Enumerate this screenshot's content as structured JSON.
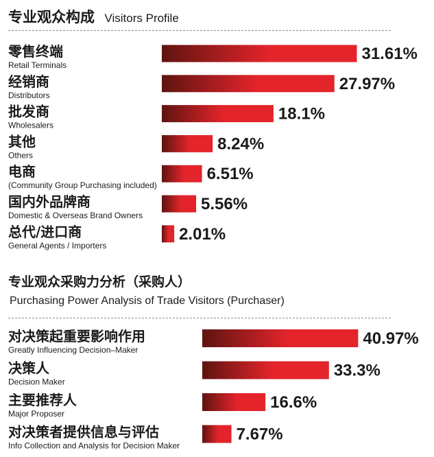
{
  "title": {
    "zh": "专业观众构成",
    "en": "Visitors Profile"
  },
  "section2": {
    "zh": "专业观众采购力分析（采购人）",
    "en": "Purchasing Power Analysis of Trade Visitors (Purchaser)"
  },
  "colors": {
    "bar_dark": "#5e1410",
    "bar_bright": "#e3242b",
    "divider": "#8a8a8a"
  },
  "chart_data": [
    {
      "type": "bar",
      "orientation": "horizontal",
      "title": "专业观众构成 Visitors Profile",
      "categories": [
        {
          "zh": "零售终端",
          "en": "Retail Terminals"
        },
        {
          "zh": "经销商",
          "en": "Distributors"
        },
        {
          "zh": "批发商",
          "en": "Wholesalers"
        },
        {
          "zh": "其他",
          "en": "Others"
        },
        {
          "zh": "电商",
          "en": "(Community Group Purchasing included)"
        },
        {
          "zh": "国内外品牌商",
          "en": "Domestic & Overseas Brand Owners"
        },
        {
          "zh": "总代/进口商",
          "en": "General Agents / Importers"
        }
      ],
      "values": [
        31.61,
        27.97,
        18.1,
        8.24,
        6.51,
        5.56,
        2.01
      ],
      "value_labels": [
        "31.61%",
        "27.97%",
        "18.1%",
        "8.24%",
        "6.51%",
        "5.56%",
        "2.01%"
      ],
      "unit": "%"
    },
    {
      "type": "bar",
      "orientation": "horizontal",
      "title": "专业观众采购力分析（采购人） Purchasing Power Analysis of Trade Visitors (Purchaser)",
      "categories": [
        {
          "zh": "对决策起重要影响作用",
          "en": "Greatly Influencing Decision–Maker"
        },
        {
          "zh": "决策人",
          "en": "Decision Maker"
        },
        {
          "zh": "主要推荐人",
          "en": "Major Proposer"
        },
        {
          "zh": "对决策者提供信息与评估",
          "en": "Info Collection and Analysis for Decision Maker"
        }
      ],
      "values": [
        40.97,
        33.3,
        16.6,
        7.67
      ],
      "value_labels": [
        "40.97%",
        "33.3%",
        "16.6%",
        "7.67%"
      ],
      "unit": "%"
    }
  ]
}
